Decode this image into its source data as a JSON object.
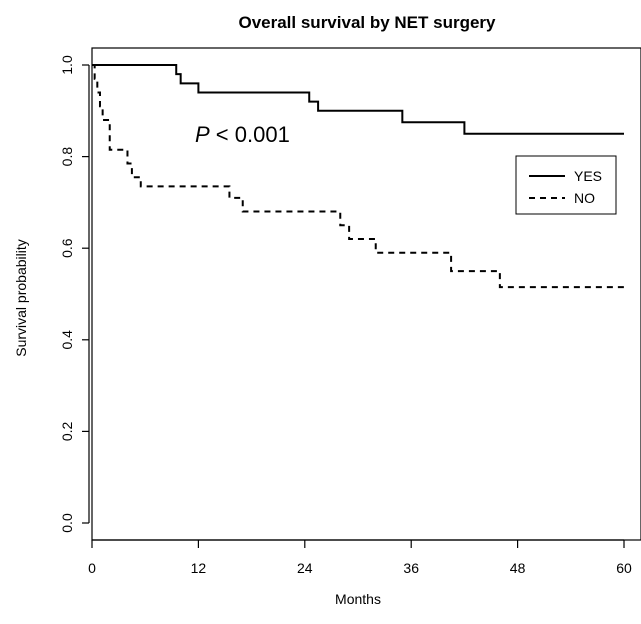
{
  "chart_data": {
    "type": "line",
    "subtype": "kaplan-meier step curve",
    "title": "Overall survival by NET surgery",
    "xlabel": "Months",
    "ylabel": "Survival probability",
    "xlim": [
      0,
      60
    ],
    "ylim": [
      0,
      1
    ],
    "x_ticks": [
      "0",
      "12",
      "24",
      "36",
      "48",
      "60"
    ],
    "y_ticks": [
      "0.0",
      "0.2",
      "0.4",
      "0.6",
      "0.8",
      "1.0"
    ],
    "grid": false,
    "legend_position": "top-right",
    "annotation": {
      "prefix": "P",
      "text": " < 0.001"
    },
    "series": [
      {
        "name": "YES",
        "line_style": "solid",
        "color": "#000000",
        "steps": [
          {
            "x": 0,
            "y": 1.0
          },
          {
            "x": 9.5,
            "y": 0.98
          },
          {
            "x": 10,
            "y": 0.96
          },
          {
            "x": 12,
            "y": 0.94
          },
          {
            "x": 24.5,
            "y": 0.92
          },
          {
            "x": 25.5,
            "y": 0.9
          },
          {
            "x": 35,
            "y": 0.875
          },
          {
            "x": 42,
            "y": 0.85
          },
          {
            "x": 60,
            "y": 0.85
          }
        ]
      },
      {
        "name": "NO",
        "line_style": "dashed",
        "color": "#000000",
        "steps": [
          {
            "x": 0,
            "y": 1.0
          },
          {
            "x": 0.3,
            "y": 0.97
          },
          {
            "x": 0.6,
            "y": 0.94
          },
          {
            "x": 0.9,
            "y": 0.91
          },
          {
            "x": 1.2,
            "y": 0.88
          },
          {
            "x": 2,
            "y": 0.815
          },
          {
            "x": 4,
            "y": 0.785
          },
          {
            "x": 4.5,
            "y": 0.755
          },
          {
            "x": 5.5,
            "y": 0.735
          },
          {
            "x": 15.5,
            "y": 0.71
          },
          {
            "x": 17,
            "y": 0.68
          },
          {
            "x": 28,
            "y": 0.65
          },
          {
            "x": 29,
            "y": 0.62
          },
          {
            "x": 32,
            "y": 0.59
          },
          {
            "x": 40.5,
            "y": 0.55
          },
          {
            "x": 46,
            "y": 0.515
          },
          {
            "x": 60,
            "y": 0.515
          }
        ]
      }
    ]
  }
}
